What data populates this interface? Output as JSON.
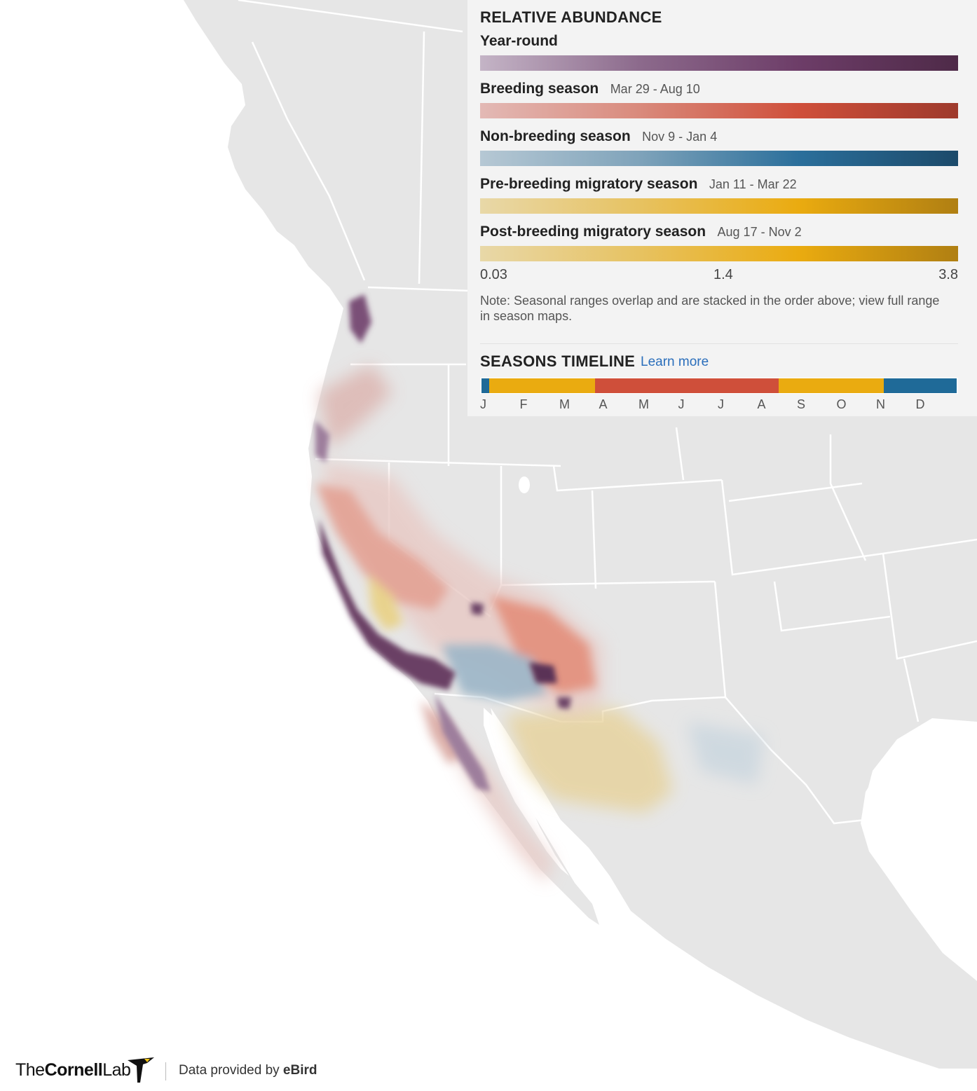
{
  "legend": {
    "title": "RELATIVE ABUNDANCE",
    "seasons": [
      {
        "name": "Year-round",
        "dates": "",
        "colors": [
          "#c4b4c6",
          "#8c6a8c",
          "#6d3d68",
          "#4e2a48"
        ]
      },
      {
        "name": "Breeding season",
        "dates": "Mar 29 - Aug 10",
        "colors": [
          "#e3b9b5",
          "#d98a7c",
          "#cf4f3a",
          "#9e3a2c"
        ]
      },
      {
        "name": "Non-breeding season",
        "dates": "Nov 9 - Jan 4",
        "colors": [
          "#b6c8d4",
          "#7fa3ba",
          "#2b6f9b",
          "#1c4a6a"
        ]
      },
      {
        "name": "Pre-breeding migratory season",
        "dates": "Jan 11 - Mar 22",
        "colors": [
          "#e8d8a8",
          "#e7c261",
          "#eaab10",
          "#b07f12"
        ]
      },
      {
        "name": "Post-breeding migratory season",
        "dates": "Aug 17 - Nov 2",
        "colors": [
          "#e8d8a8",
          "#e7c261",
          "#eaab10",
          "#b07f12"
        ]
      }
    ],
    "scale": {
      "min": "0.03",
      "mid": "1.4",
      "max": "3.8"
    },
    "note": "Note: Seasonal ranges overlap and are stacked in the order above; view full range in season maps."
  },
  "timeline": {
    "title": "SEASONS TIMELINE",
    "learn_more": "Learn more",
    "months": [
      "J",
      "F",
      "M",
      "A",
      "M",
      "J",
      "J",
      "A",
      "S",
      "O",
      "N",
      "D"
    ],
    "segments": [
      {
        "season": "Non-breeding season",
        "start_day": 1,
        "end_day": 7,
        "color": "#1f6a98"
      },
      {
        "season": "Pre-breeding migratory season",
        "start_day": 7,
        "end_day": 88,
        "color": "#eaab10"
      },
      {
        "season": "Breeding season",
        "start_day": 88,
        "end_day": 229,
        "color": "#cf4f3a"
      },
      {
        "season": "Post-breeding migratory season",
        "start_day": 229,
        "end_day": 310,
        "color": "#eaab10"
      },
      {
        "season": "Non-breeding season",
        "start_day": 310,
        "end_day": 365,
        "color": "#1f6a98"
      }
    ]
  },
  "footer": {
    "logo_prefix": "The",
    "logo_bold": "Cornell",
    "logo_suffix": "Lab",
    "data_text": "Data provided by ",
    "data_brand": "eBird"
  },
  "map": {
    "land_color": "#e6e6e6",
    "water_color": "#ffffff",
    "border_color": "#ffffff"
  }
}
